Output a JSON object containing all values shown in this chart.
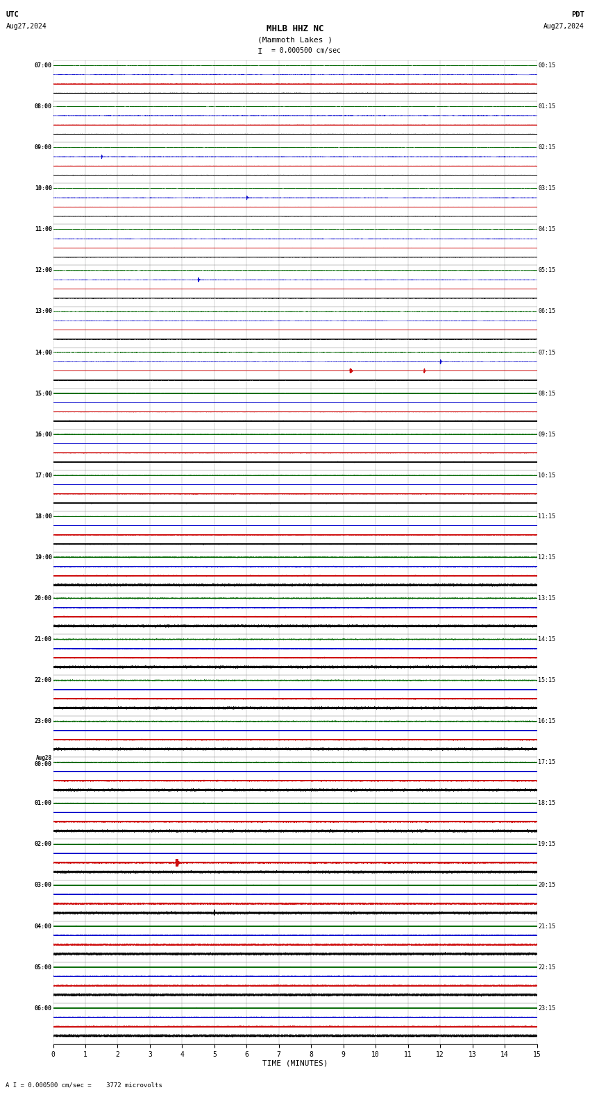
{
  "title_line1": "MHLB HHZ NC",
  "title_line2": "(Mammoth Lakes )",
  "scale_label": "= 0.000500 cm/sec",
  "scale_bracket": "I",
  "utc_label": "UTC",
  "utc_date": "Aug27,2024",
  "pdt_label": "PDT",
  "pdt_date": "Aug27,2024",
  "bottom_label": "A I = 0.000500 cm/sec =    3772 microvolts",
  "xlabel": "TIME (MINUTES)",
  "bg_color": "#ffffff",
  "trace_colors": [
    "#000000",
    "#cc0000",
    "#0000cc",
    "#006600"
  ],
  "left_times_utc": [
    "07:00",
    "08:00",
    "09:00",
    "10:00",
    "11:00",
    "12:00",
    "13:00",
    "14:00",
    "15:00",
    "16:00",
    "17:00",
    "18:00",
    "19:00",
    "20:00",
    "21:00",
    "22:00",
    "23:00",
    "Aug28\n00:00",
    "01:00",
    "02:00",
    "03:00",
    "04:00",
    "05:00",
    "06:00"
  ],
  "right_times_pdt": [
    "00:15",
    "01:15",
    "02:15",
    "03:15",
    "04:15",
    "05:15",
    "06:15",
    "07:15",
    "08:15",
    "09:15",
    "10:15",
    "11:15",
    "12:15",
    "13:15",
    "14:15",
    "15:15",
    "16:15",
    "17:15",
    "18:15",
    "19:15",
    "20:15",
    "21:15",
    "22:15",
    "23:15"
  ],
  "n_rows": 24,
  "n_traces_per_row": 4,
  "minutes": 15,
  "xmin": 0,
  "xmax": 15,
  "xticks": [
    0,
    1,
    2,
    3,
    4,
    5,
    6,
    7,
    8,
    9,
    10,
    11,
    12,
    13,
    14,
    15
  ]
}
